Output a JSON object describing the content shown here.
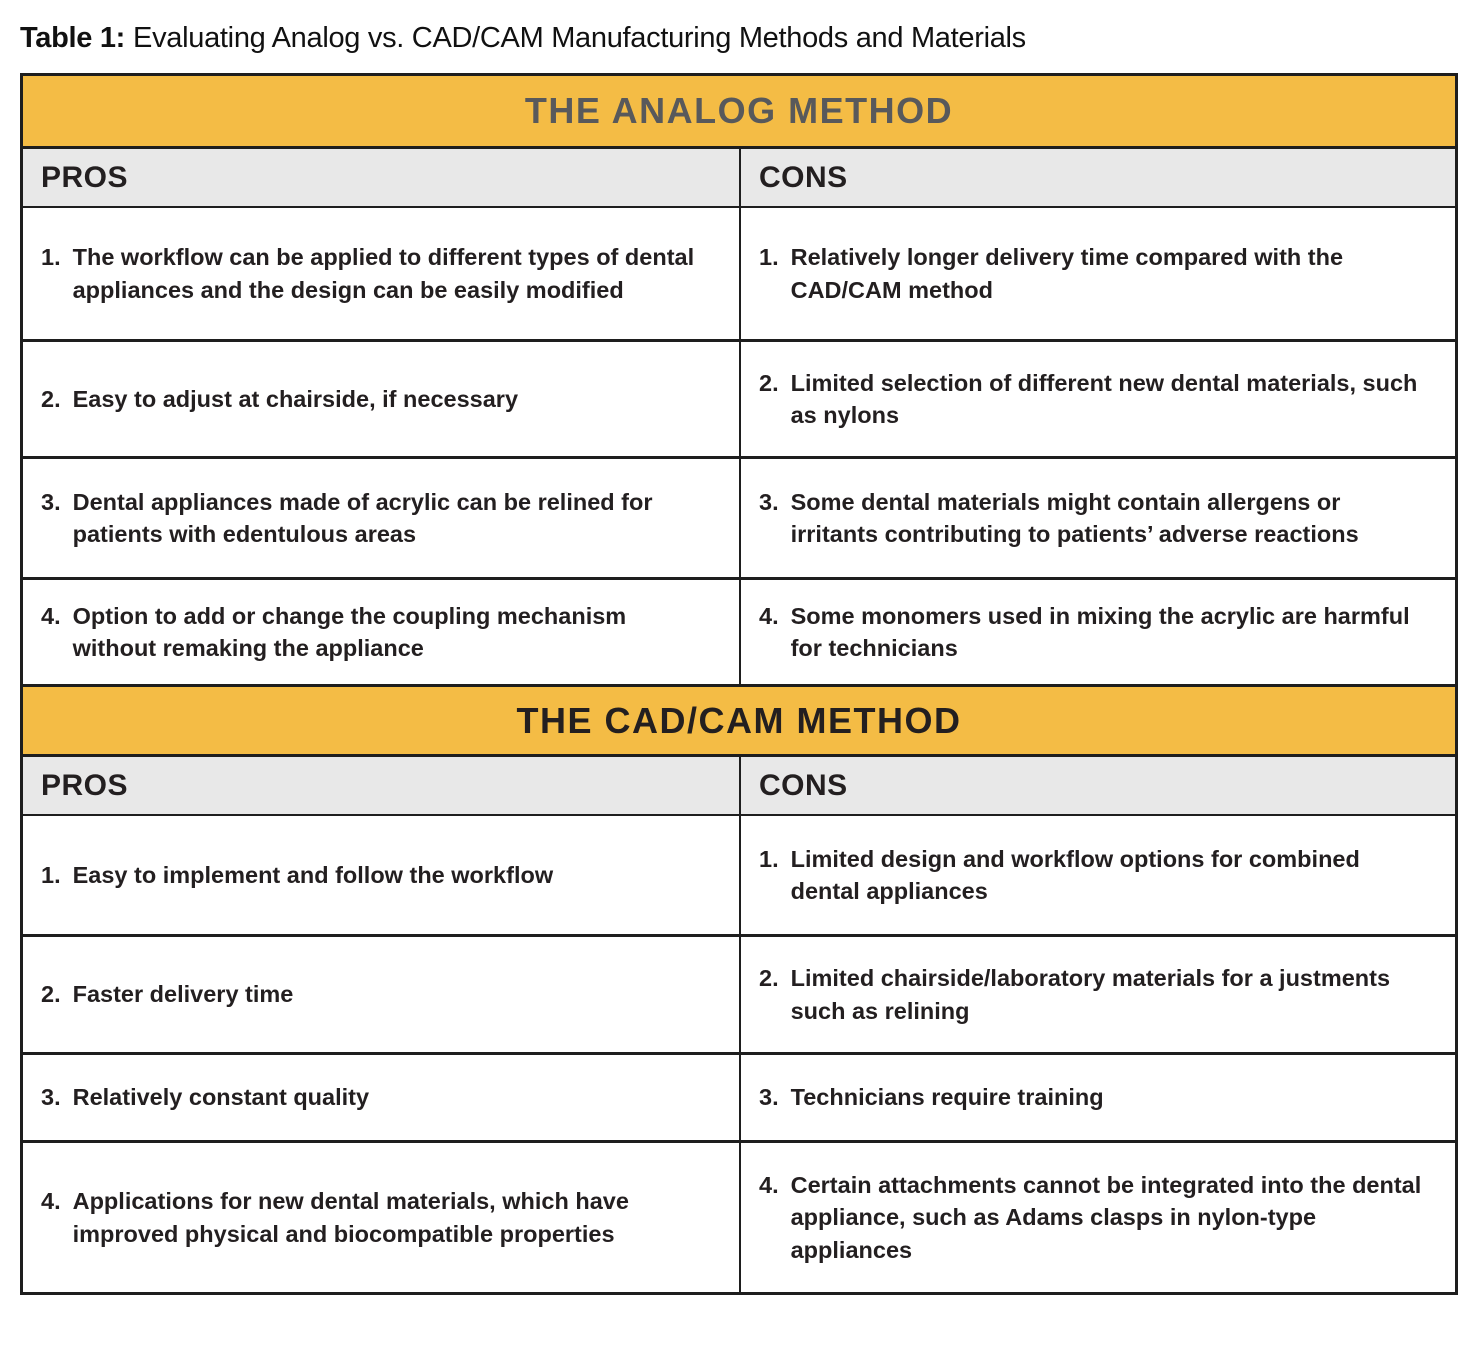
{
  "title": {
    "label": "Table 1:",
    "text": "Evaluating Analog vs. CAD/CAM Manufacturing Methods and Materials"
  },
  "colors": {
    "band_bg": "#F4BC45",
    "analog_header_text": "#58595B",
    "cadcam_header_text": "#231F20",
    "subheader_bg": "#E8E8E8",
    "body_text": "#231F20",
    "border": "#1E1E1E"
  },
  "sections": [
    {
      "header": "THE ANALOG METHOD",
      "pros_label": "PROS",
      "cons_label": "CONS",
      "rows": [
        {
          "pro_num": "1.",
          "pro": "The workflow can be applied to different types of dental appliances and the design can be easily modified",
          "con_num": "1.",
          "con": "Relatively longer delivery time compared with the CAD/CAM method"
        },
        {
          "pro_num": "2.",
          "pro": "Easy to adjust at chairside, if necessary",
          "con_num": "2.",
          "con": "Limited selection of different new dental materials, such as nylons"
        },
        {
          "pro_num": "3.",
          "pro": "Dental appliances made of acrylic can be relined for patients with edentulous areas",
          "con_num": "3.",
          "con": "Some dental materials might contain allergens or irritants contributing to patients’ adverse reactions"
        },
        {
          "pro_num": "4.",
          "pro": "Option to add or change the coupling mechanism without remaking the appliance",
          "con_num": "4.",
          "con": "Some monomers used in mixing the acrylic are harmful for technicians"
        }
      ]
    },
    {
      "header": "THE CAD/CAM METHOD",
      "pros_label": "PROS",
      "cons_label": "CONS",
      "rows": [
        {
          "pro_num": "1.",
          "pro": "Easy to implement and follow the workflow",
          "con_num": "1.",
          "con": "Limited design and workflow options for combined dental appliances"
        },
        {
          "pro_num": "2.",
          "pro": "Faster delivery time",
          "con_num": "2.",
          "con": "Limited chairside/laboratory materials for a justments such as relining"
        },
        {
          "pro_num": "3.",
          "pro": "Relatively constant quality",
          "con_num": "3.",
          "con": "Technicians require training"
        },
        {
          "pro_num": "4.",
          "pro": "Applications for new dental materials, which have improved physical and biocompatible properties",
          "con_num": "4.",
          "con": "Certain attachments cannot be integrated into the dental appliance, such as Adams clasps in nylon-type appliances"
        }
      ]
    }
  ]
}
